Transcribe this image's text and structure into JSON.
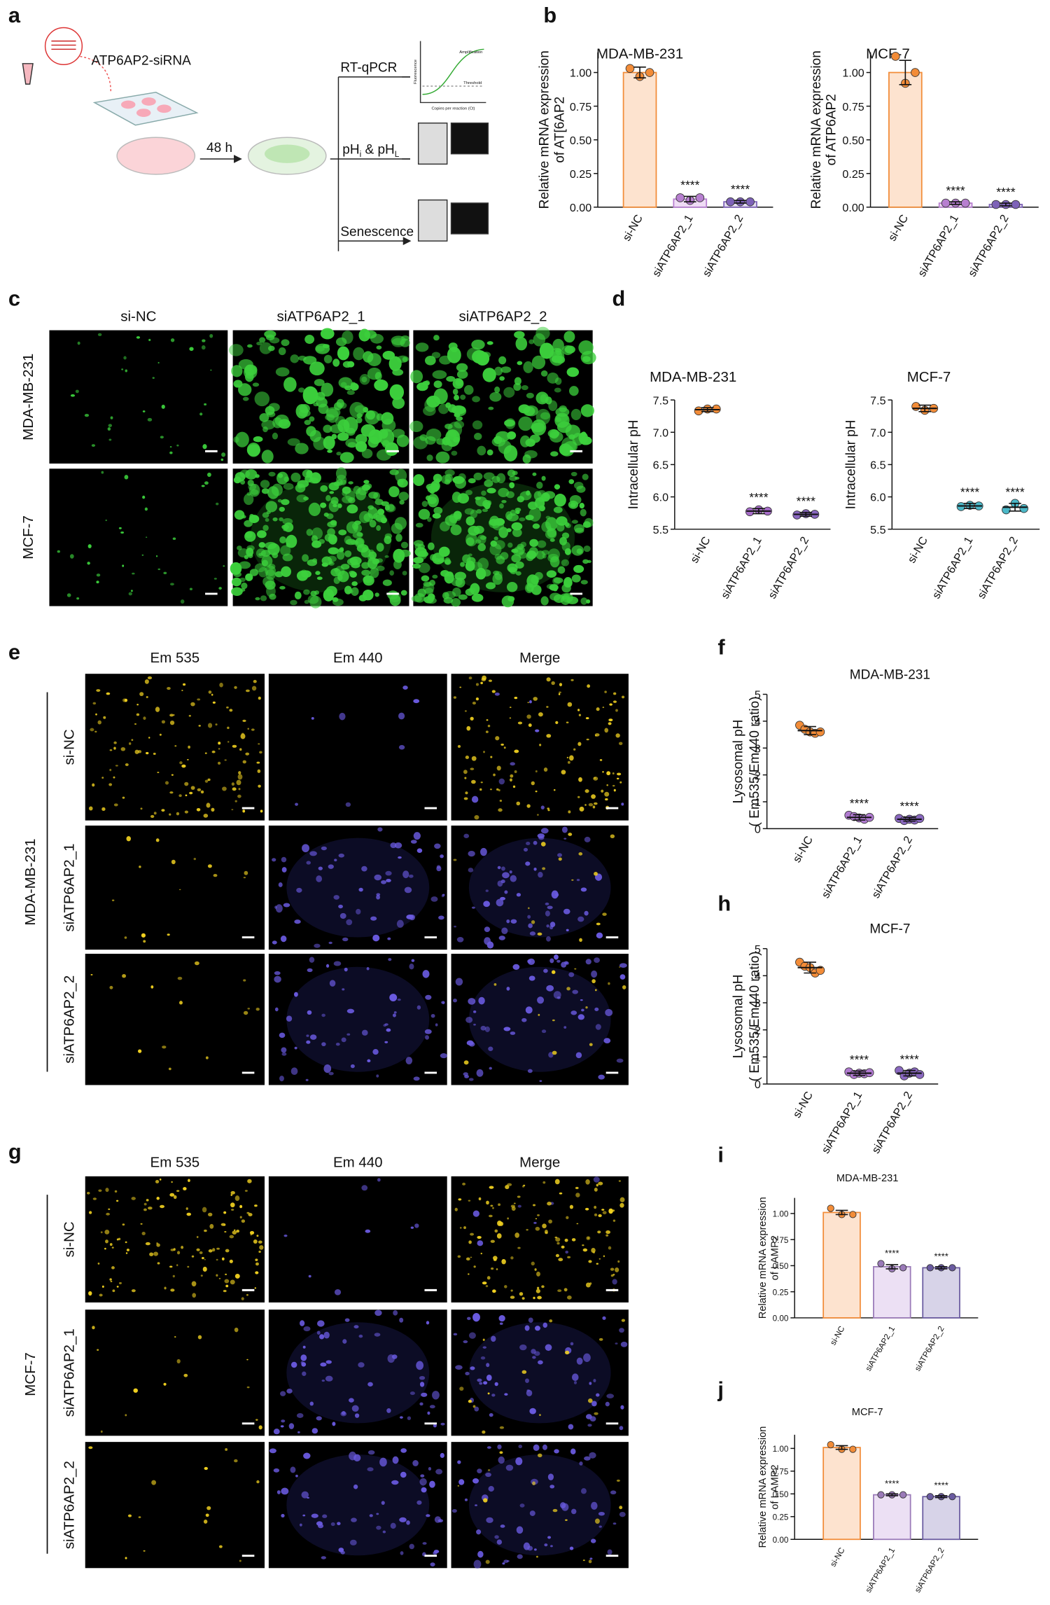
{
  "panel_labels": [
    "a",
    "b",
    "c",
    "d",
    "e",
    "f",
    "g",
    "h",
    "i",
    "j"
  ],
  "schematic": {
    "sirna": "ATP6AP2-siRNA",
    "time": "48 h",
    "assays": [
      "RT-qPCR",
      "Senescence"
    ],
    "ph": [
      "pH",
      "i",
      " & pH",
      "L"
    ],
    "curve_labels": [
      "Amplification",
      "Threshold",
      "Fluorescence",
      "Copies per reaction (Ct)"
    ]
  },
  "panel_c": {
    "columns": [
      "si-NC",
      "siATP6AP2_1",
      "siATP6AP2_2"
    ],
    "rows": [
      "MDA-MB-231",
      "MCF-7"
    ]
  },
  "panel_e": {
    "columns": [
      "Em 535",
      "Em 440",
      "Merge"
    ],
    "group": "MDA-MB-231",
    "rows": [
      "si-NC",
      "siATP6AP2_1",
      "siATP6AP2_2"
    ]
  },
  "panel_g": {
    "columns": [
      "Em 535",
      "Em 440",
      "Merge"
    ],
    "group": "MCF-7",
    "rows": [
      "si-NC",
      "siATP6AP2_1",
      "siATP6AP2_2"
    ]
  },
  "chart_data": [
    {
      "type": "bar",
      "title": "MDA-MB-231",
      "ylabel": [
        "Relative mRNA expression",
        "of AT[6AP2"
      ],
      "categories": [
        "si-NC",
        "siATP6AP2_1",
        "siATP6AP2_2"
      ],
      "values": [
        1.0,
        0.06,
        0.04
      ],
      "errors": [
        0.04,
        0.02,
        0.01
      ],
      "points": [
        [
          1.03,
          0.97,
          1.0
        ],
        [
          0.07,
          0.05,
          0.07
        ],
        [
          0.04,
          0.04,
          0.04
        ]
      ],
      "sig": [
        null,
        "****",
        "****"
      ],
      "colors": [
        "#f28c38",
        "#b77fd0",
        "#7e62b8"
      ],
      "fills": [
        "#fde3cf",
        "#efdcf5",
        "#e3dcf0"
      ],
      "ylim": [
        0,
        1.15
      ],
      "yticks": [
        {
          "value": 0,
          "label": "0.00"
        },
        {
          "value": 0.25,
          "label": "0.25"
        },
        {
          "value": 0.5,
          "label": "0.50"
        },
        {
          "value": 0.75,
          "label": "0.75"
        },
        {
          "value": 1,
          "label": "1.00"
        }
      ]
    },
    {
      "type": "bar",
      "title": "MCF-7",
      "ylabel": [
        "Relative mRNA expression",
        "of ATP6AP2"
      ],
      "categories": [
        "si-NC",
        "siATP6AP2_1",
        "siATP6AP2_2"
      ],
      "values": [
        1.0,
        0.03,
        0.02
      ],
      "errors": [
        0.09,
        0.01,
        0.01
      ],
      "points": [
        [
          1.12,
          0.92,
          1.0
        ],
        [
          0.03,
          0.03,
          0.03
        ],
        [
          0.02,
          0.02,
          0.02
        ]
      ],
      "sig": [
        null,
        "****",
        "****"
      ],
      "colors": [
        "#f28c38",
        "#b77fd0",
        "#7e62b8"
      ],
      "fills": [
        "#fde3cf",
        "#efdcf5",
        "#e3dcf0"
      ],
      "ylim": [
        0,
        1.15
      ],
      "yticks": [
        {
          "value": 0,
          "label": "0.00"
        },
        {
          "value": 0.25,
          "label": "0.25"
        },
        {
          "value": 0.5,
          "label": "0.50"
        },
        {
          "value": 0.75,
          "label": "0.75"
        },
        {
          "value": 1,
          "label": "1.00"
        }
      ]
    },
    {
      "type": "dot",
      "title": "MDA-MB-231",
      "ylabel": [
        "Intracellular pH"
      ],
      "categories": [
        "si-NC",
        "siATP6AP2_1",
        "siATP6AP2_2"
      ],
      "values": [
        7.35,
        5.78,
        5.73
      ],
      "errors": [
        0.03,
        0.04,
        0.03
      ],
      "points": [
        [
          7.33,
          7.36,
          7.36
        ],
        [
          5.77,
          5.8,
          5.78
        ],
        [
          5.72,
          5.74,
          5.73
        ]
      ],
      "sig": [
        null,
        "****",
        "****"
      ],
      "colors": [
        "#f28c38",
        "#a66cc8",
        "#8a68c0"
      ],
      "ylim": [
        5.5,
        7.5
      ],
      "yticks": [
        5.5,
        {
          "value": 6,
          "label": "6.0"
        },
        6.5,
        {
          "value": 7,
          "label": "7.0"
        },
        7.5
      ]
    },
    {
      "type": "dot",
      "title": "MCF-7",
      "ylabel": [
        "Intracellular pH"
      ],
      "categories": [
        "si-NC",
        "siATP6AP2_1",
        "siATP6AP2_2"
      ],
      "values": [
        7.37,
        5.86,
        5.84
      ],
      "errors": [
        0.05,
        0.04,
        0.06
      ],
      "points": [
        [
          7.4,
          7.34,
          7.37
        ],
        [
          5.85,
          5.87,
          5.86
        ],
        [
          5.8,
          5.9,
          5.82
        ]
      ],
      "sig": [
        null,
        "****",
        "****"
      ],
      "colors": [
        "#f28c38",
        "#4bb8c8",
        "#4bb8c8"
      ],
      "ylim": [
        5.5,
        7.5
      ],
      "yticks": [
        5.5,
        {
          "value": 6,
          "label": "6.0"
        },
        6.5,
        {
          "value": 7,
          "label": "7.0"
        },
        7.5
      ]
    },
    {
      "type": "dot",
      "title": "MDA-MB-231",
      "ylabel": [
        "Lysosomal pH",
        "( Em535/Em440 ratio)"
      ],
      "categories": [
        "si-NC",
        "siATP6AP2_1",
        "siATP6AP2_2"
      ],
      "values": [
        3.65,
        0.42,
        0.35
      ],
      "errors": [
        0.15,
        0.1,
        0.07
      ],
      "points": [
        [
          3.85,
          3.7,
          3.6,
          3.55,
          3.6
        ],
        [
          0.5,
          0.45,
          0.4,
          0.35,
          0.42
        ],
        [
          0.38,
          0.3,
          0.35,
          0.32,
          0.38
        ]
      ],
      "sig": [
        null,
        "****",
        "****"
      ],
      "colors": [
        "#f28c38",
        "#b07ad0",
        "#8a68c0"
      ],
      "ylim": [
        0,
        5
      ],
      "yticks": [
        0,
        1,
        2,
        3,
        4,
        5
      ]
    },
    {
      "type": "dot",
      "title": "MCF-7",
      "ylabel": [
        "Lysosomal pH",
        "( Em535/Em440 ratio)"
      ],
      "categories": [
        "si-NC",
        "siATP6AP2_1",
        "siATP6AP2_2"
      ],
      "values": [
        4.3,
        0.4,
        0.4
      ],
      "errors": [
        0.2,
        0.08,
        0.1
      ],
      "points": [
        [
          4.5,
          4.35,
          4.3,
          4.1,
          4.2
        ],
        [
          0.45,
          0.35,
          0.4,
          0.38,
          0.42
        ],
        [
          0.5,
          0.3,
          0.4,
          0.45,
          0.35
        ]
      ],
      "sig": [
        null,
        "****",
        "****"
      ],
      "colors": [
        "#f28c38",
        "#b07ad0",
        "#8a68c0"
      ],
      "ylim": [
        0,
        5
      ],
      "yticks": [
        0,
        1,
        2,
        3,
        4,
        5
      ]
    },
    {
      "type": "bar",
      "title": "MDA-MB-231",
      "ylabel": [
        "Relative mRNA expression",
        "of LAMP2"
      ],
      "categories": [
        "si-NC",
        "siATP6AP2_1",
        "siATP6AP2_2"
      ],
      "values": [
        1.01,
        0.49,
        0.48
      ],
      "errors": [
        0.02,
        0.02,
        0.01
      ],
      "points": [
        [
          1.05,
          0.99,
          0.99
        ],
        [
          0.52,
          0.47,
          0.48
        ],
        [
          0.48,
          0.48,
          0.48
        ]
      ],
      "sig": [
        null,
        "****",
        "****"
      ],
      "colors": [
        "#f28c38",
        "#9a7ab8",
        "#6a5ba0"
      ],
      "fills": [
        "#fde3cf",
        "#ece0f4",
        "#d7d3e8"
      ],
      "ylim": [
        0,
        1.15
      ],
      "yticks": [
        {
          "value": 0,
          "label": "0.00"
        },
        {
          "value": 0.25,
          "label": "0.25"
        },
        {
          "value": 0.5,
          "label": "0.50"
        },
        {
          "value": 0.75,
          "label": "0.75"
        },
        {
          "value": 1,
          "label": "1.00"
        }
      ]
    },
    {
      "type": "bar",
      "title": "MCF-7",
      "ylabel": [
        "Relative mRNA expression",
        "of LAMP2"
      ],
      "categories": [
        "si-NC",
        "siATP6AP2_1",
        "siATP6AP2_2"
      ],
      "values": [
        1.01,
        0.49,
        0.47
      ],
      "errors": [
        0.02,
        0.01,
        0.01
      ],
      "points": [
        [
          1.04,
          0.99,
          0.99
        ],
        [
          0.49,
          0.49,
          0.49
        ],
        [
          0.47,
          0.47,
          0.47
        ]
      ],
      "sig": [
        null,
        "****",
        "****"
      ],
      "colors": [
        "#f28c38",
        "#9a7ab8",
        "#6a5ba0"
      ],
      "fills": [
        "#fde3cf",
        "#ece0f4",
        "#d7d3e8"
      ],
      "ylim": [
        0,
        1.15
      ],
      "yticks": [
        {
          "value": 0,
          "label": "0.00"
        },
        {
          "value": 0.25,
          "label": "0.25"
        },
        {
          "value": 0.5,
          "label": "0.50"
        },
        {
          "value": 0.75,
          "label": "0.75"
        },
        {
          "value": 1,
          "label": "1.00"
        }
      ]
    }
  ]
}
